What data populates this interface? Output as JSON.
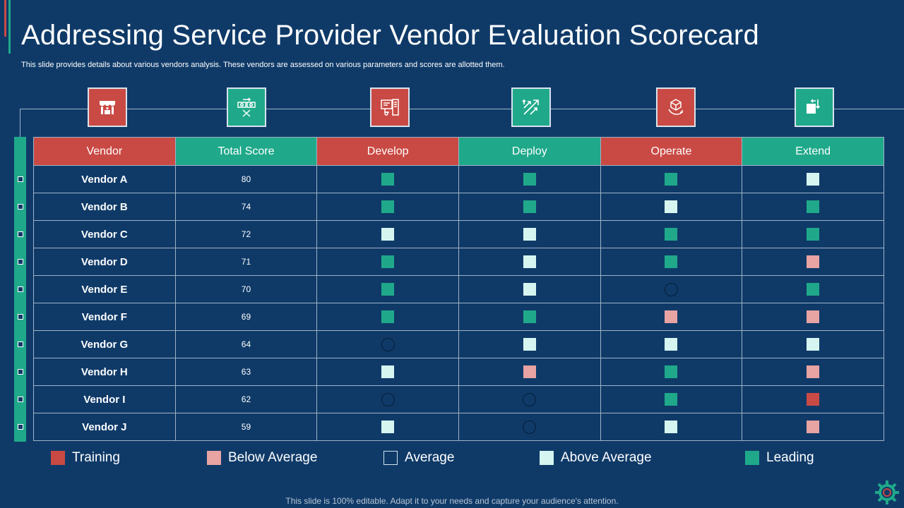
{
  "slide": {
    "title": "Addressing Service Provider Vendor Evaluation Scorecard",
    "subtitle": "This slide provides details about various vendors analysis. These vendors are assessed on various parameters and scores are allotted them.",
    "footer": "This slide is 100% editable. Adapt it to your needs and capture your audience's attention."
  },
  "icons": [
    {
      "name": "shop-stall-icon",
      "color": "#c94a44"
    },
    {
      "name": "currency-exchange-icon",
      "color": "#1fa98a"
    },
    {
      "name": "development-tools-icon",
      "color": "#c94a44"
    },
    {
      "name": "deploy-arrows-icon",
      "color": "#1fa98a"
    },
    {
      "name": "hand-cube-icon",
      "color": "#c94a44"
    },
    {
      "name": "extend-blocks-icon",
      "color": "#1fa98a"
    }
  ],
  "table": {
    "headers": [
      "Vendor",
      "Total Score",
      "Develop",
      "Deploy",
      "Operate",
      "Extend"
    ],
    "rows": [
      {
        "vendor": "Vendor A",
        "score": "80",
        "develop": "leading",
        "deploy": "leading",
        "operate": "leading",
        "extend": "above"
      },
      {
        "vendor": "Vendor B",
        "score": "74",
        "develop": "leading",
        "deploy": "leading",
        "operate": "above",
        "extend": "leading"
      },
      {
        "vendor": "Vendor C",
        "score": "72",
        "develop": "above",
        "deploy": "above",
        "operate": "leading",
        "extend": "leading"
      },
      {
        "vendor": "Vendor D",
        "score": "71",
        "develop": "leading",
        "deploy": "above",
        "operate": "leading",
        "extend": "below"
      },
      {
        "vendor": "Vendor E",
        "score": "70",
        "develop": "leading",
        "deploy": "above",
        "operate": "average",
        "extend": "leading"
      },
      {
        "vendor": "Vendor F",
        "score": "69",
        "develop": "leading",
        "deploy": "leading",
        "operate": "below",
        "extend": "below"
      },
      {
        "vendor": "Vendor G",
        "score": "64",
        "develop": "average",
        "deploy": "above",
        "operate": "above",
        "extend": "above"
      },
      {
        "vendor": "Vendor H",
        "score": "63",
        "develop": "above",
        "deploy": "below",
        "operate": "leading",
        "extend": "below"
      },
      {
        "vendor": "Vendor I",
        "score": "62",
        "develop": "average",
        "deploy": "average",
        "operate": "leading",
        "extend": "training"
      },
      {
        "vendor": "Vendor J",
        "score": "59",
        "develop": "above",
        "deploy": "average",
        "operate": "above",
        "extend": "below"
      }
    ]
  },
  "legend": [
    {
      "key": "training",
      "label": "Training"
    },
    {
      "key": "below",
      "label": "Below Average"
    },
    {
      "key": "average",
      "label": "Average"
    },
    {
      "key": "above",
      "label": "Above Average"
    },
    {
      "key": "leading",
      "label": "Leading"
    }
  ],
  "colors": {
    "background": "#0f3a68",
    "red": "#c94a44",
    "teal": "#1fa98a",
    "below_average": "#e8a3a3",
    "above_average": "#d6f5f1"
  }
}
